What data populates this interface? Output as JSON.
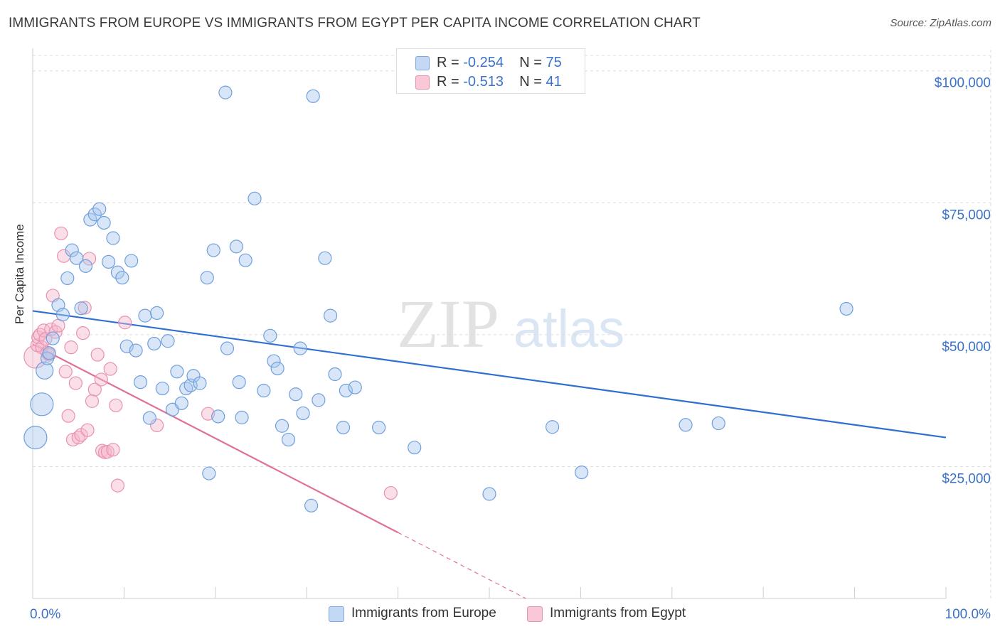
{
  "title": "IMMIGRANTS FROM EUROPE VS IMMIGRANTS FROM EGYPT PER CAPITA INCOME CORRELATION CHART",
  "source": "Source: ZipAtlas.com",
  "watermark": {
    "zip": "ZIP",
    "atlas": "atlas"
  },
  "legend": {
    "europe": {
      "r_label": "R =",
      "r_value": "-0.254",
      "n_label": "N =",
      "n_value": "75"
    },
    "egypt": {
      "r_label": "R =",
      "r_value": "-0.513",
      "n_label": "N =",
      "n_value": "41"
    }
  },
  "colors": {
    "europe_fill": "#a9c8f0",
    "europe_stroke": "#6f9fdc",
    "europe_line": "#2f6fd0",
    "egypt_fill": "#f7b9cc",
    "egypt_stroke": "#e892ae",
    "egypt_line": "#e0709a",
    "axis_label": "#3a72c9",
    "grid": "#dcdcdc"
  },
  "chart_data": {
    "type": "scatter",
    "title": "IMMIGRANTS FROM EUROPE VS IMMIGRANTS FROM EGYPT PER CAPITA INCOME CORRELATION CHART",
    "xlabel": "",
    "ylabel": "Per Capita Income",
    "xlim": [
      0,
      100
    ],
    "ylim": [
      0,
      104000
    ],
    "x_tick_labels": [
      "0.0%",
      "100.0%"
    ],
    "y_ticks": [
      25000,
      50000,
      75000,
      100000
    ],
    "y_tick_labels": [
      "$25,000",
      "$50,000",
      "$75,000",
      "$100,000"
    ],
    "grid": true,
    "series": [
      {
        "name": "Immigrants from Europe",
        "r": -0.254,
        "n": 75,
        "trend": {
          "x": [
            0,
            100
          ],
          "y": [
            54500,
            30500
          ]
        },
        "points": [
          {
            "x": 0.3,
            "y": 30500,
            "s": 3
          },
          {
            "x": 1.0,
            "y": 36800,
            "s": 3
          },
          {
            "x": 1.3,
            "y": 43200,
            "s": 2
          },
          {
            "x": 1.6,
            "y": 45500
          },
          {
            "x": 1.8,
            "y": 46500
          },
          {
            "x": 2.2,
            "y": 49300
          },
          {
            "x": 2.8,
            "y": 55600
          },
          {
            "x": 3.3,
            "y": 53800
          },
          {
            "x": 3.8,
            "y": 60700
          },
          {
            "x": 4.3,
            "y": 66000
          },
          {
            "x": 4.8,
            "y": 64500
          },
          {
            "x": 5.3,
            "y": 55000
          },
          {
            "x": 5.8,
            "y": 63000
          },
          {
            "x": 6.3,
            "y": 71800
          },
          {
            "x": 6.8,
            "y": 72800
          },
          {
            "x": 7.3,
            "y": 73800
          },
          {
            "x": 7.8,
            "y": 71200
          },
          {
            "x": 8.3,
            "y": 63800
          },
          {
            "x": 8.8,
            "y": 68300
          },
          {
            "x": 9.3,
            "y": 61800
          },
          {
            "x": 9.8,
            "y": 60800
          },
          {
            "x": 10.3,
            "y": 47800
          },
          {
            "x": 10.8,
            "y": 64000
          },
          {
            "x": 11.3,
            "y": 47000
          },
          {
            "x": 11.8,
            "y": 41000
          },
          {
            "x": 12.3,
            "y": 53600
          },
          {
            "x": 12.8,
            "y": 34200
          },
          {
            "x": 13.3,
            "y": 48300
          },
          {
            "x": 13.6,
            "y": 54100
          },
          {
            "x": 14.2,
            "y": 39800
          },
          {
            "x": 14.8,
            "y": 48800
          },
          {
            "x": 15.3,
            "y": 35800
          },
          {
            "x": 15.8,
            "y": 43000
          },
          {
            "x": 16.3,
            "y": 37000
          },
          {
            "x": 16.8,
            "y": 39800
          },
          {
            "x": 17.3,
            "y": 40400
          },
          {
            "x": 17.6,
            "y": 42200
          },
          {
            "x": 18.3,
            "y": 40800
          },
          {
            "x": 19.3,
            "y": 23700
          },
          {
            "x": 20.3,
            "y": 34500
          },
          {
            "x": 21.1,
            "y": 95900
          },
          {
            "x": 21.3,
            "y": 47400
          },
          {
            "x": 19.1,
            "y": 60800
          },
          {
            "x": 19.8,
            "y": 66000
          },
          {
            "x": 22.3,
            "y": 66700
          },
          {
            "x": 22.6,
            "y": 41000
          },
          {
            "x": 22.9,
            "y": 34300
          },
          {
            "x": 23.3,
            "y": 64100
          },
          {
            "x": 24.3,
            "y": 75800
          },
          {
            "x": 25.3,
            "y": 39400
          },
          {
            "x": 26.0,
            "y": 49800
          },
          {
            "x": 26.4,
            "y": 45000
          },
          {
            "x": 26.8,
            "y": 43600
          },
          {
            "x": 27.3,
            "y": 32700
          },
          {
            "x": 28.0,
            "y": 30100
          },
          {
            "x": 28.8,
            "y": 38700
          },
          {
            "x": 29.3,
            "y": 47400
          },
          {
            "x": 29.6,
            "y": 35100
          },
          {
            "x": 30.5,
            "y": 17600
          },
          {
            "x": 30.7,
            "y": 95200
          },
          {
            "x": 31.3,
            "y": 37600
          },
          {
            "x": 32.0,
            "y": 64500
          },
          {
            "x": 32.6,
            "y": 53600
          },
          {
            "x": 33.1,
            "y": 42500
          },
          {
            "x": 34.0,
            "y": 32400
          },
          {
            "x": 34.3,
            "y": 39400
          },
          {
            "x": 35.3,
            "y": 40000
          },
          {
            "x": 37.9,
            "y": 32400
          },
          {
            "x": 41.8,
            "y": 28600
          },
          {
            "x": 50.0,
            "y": 19800
          },
          {
            "x": 56.9,
            "y": 32500
          },
          {
            "x": 60.1,
            "y": 23900
          },
          {
            "x": 71.5,
            "y": 32900
          },
          {
            "x": 75.1,
            "y": 33200
          },
          {
            "x": 89.1,
            "y": 54900
          }
        ]
      },
      {
        "name": "Immigrants from Egypt",
        "r": -0.513,
        "n": 41,
        "trend": {
          "x": [
            0,
            40
          ],
          "y": [
            48200,
            12500
          ]
        },
        "trend_dashed": {
          "x": [
            40,
            54
          ],
          "y": [
            12500,
            0
          ]
        },
        "points": [
          {
            "x": 0.3,
            "y": 45800,
            "s": 3
          },
          {
            "x": 0.5,
            "y": 48000
          },
          {
            "x": 0.6,
            "y": 49500
          },
          {
            "x": 0.8,
            "y": 50000
          },
          {
            "x": 1.0,
            "y": 47600
          },
          {
            "x": 1.2,
            "y": 50800
          },
          {
            "x": 1.4,
            "y": 49200
          },
          {
            "x": 1.6,
            "y": 46600
          },
          {
            "x": 1.8,
            "y": 46200
          },
          {
            "x": 2.0,
            "y": 51000
          },
          {
            "x": 2.2,
            "y": 57400
          },
          {
            "x": 2.5,
            "y": 50500
          },
          {
            "x": 2.8,
            "y": 51700
          },
          {
            "x": 3.1,
            "y": 69200
          },
          {
            "x": 3.4,
            "y": 64900
          },
          {
            "x": 3.6,
            "y": 43000
          },
          {
            "x": 3.9,
            "y": 34600
          },
          {
            "x": 4.2,
            "y": 47600
          },
          {
            "x": 4.4,
            "y": 30100
          },
          {
            "x": 4.7,
            "y": 40800
          },
          {
            "x": 5.0,
            "y": 30500
          },
          {
            "x": 5.3,
            "y": 31000
          },
          {
            "x": 5.5,
            "y": 50300
          },
          {
            "x": 5.7,
            "y": 55100
          },
          {
            "x": 6.0,
            "y": 31900
          },
          {
            "x": 6.2,
            "y": 64400
          },
          {
            "x": 6.5,
            "y": 37400
          },
          {
            "x": 6.8,
            "y": 39600
          },
          {
            "x": 7.1,
            "y": 46200
          },
          {
            "x": 7.5,
            "y": 41500
          },
          {
            "x": 7.6,
            "y": 28000
          },
          {
            "x": 7.9,
            "y": 27700
          },
          {
            "x": 8.2,
            "y": 27800
          },
          {
            "x": 8.8,
            "y": 28200
          },
          {
            "x": 8.5,
            "y": 43500
          },
          {
            "x": 9.1,
            "y": 36600
          },
          {
            "x": 9.3,
            "y": 21400
          },
          {
            "x": 10.1,
            "y": 52300
          },
          {
            "x": 13.6,
            "y": 32800
          },
          {
            "x": 19.2,
            "y": 35000
          },
          {
            "x": 39.2,
            "y": 20000
          }
        ]
      }
    ]
  },
  "bottom_legend": {
    "europe": "Immigrants from Europe",
    "egypt": "Immigrants from Egypt"
  }
}
